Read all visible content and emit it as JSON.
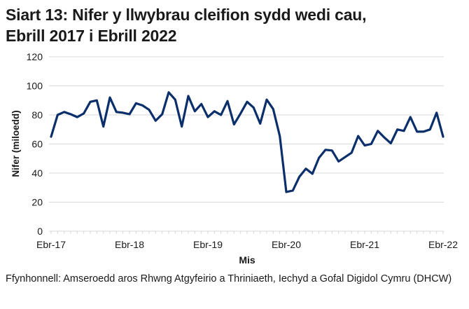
{
  "title": {
    "line1": "Siart 13: Nifer y llwybrau cleifion sydd wedi cau,",
    "line2": "Ebrill 2017 i Ebrill 2022"
  },
  "source": "Ffynhonnell: Amseroedd aros Rhwng Atgyfeirio a Thriniaeth, Iechyd a Gofal Digidol Cymru (DHCW)",
  "colors": {
    "line": "#0b2f6b",
    "grid": "#d9d9d9",
    "text": "#1a1a1a"
  },
  "chart_data": {
    "type": "line",
    "title": "Siart 13: Nifer y llwybrau cleifion sydd wedi cau, Ebrill 2017 i Ebrill 2022",
    "xlabel": "Mis",
    "ylabel": "Nifer (miloedd)",
    "ylim": [
      0,
      120
    ],
    "yticks": [
      0,
      20,
      40,
      60,
      80,
      100,
      120
    ],
    "xtick_labels": [
      "Ebr-17",
      "Ebr-18",
      "Ebr-19",
      "Ebr-20",
      "Ebr-21",
      "Ebr-22"
    ],
    "grid": true,
    "legend": null,
    "x": [
      "Ebr-17",
      "Mai-17",
      "Meh-17",
      "Gor-17",
      "Aws-17",
      "Med-17",
      "Hyd-17",
      "Tach-17",
      "Rhag-17",
      "Ion-18",
      "Chwe-18",
      "Maw-18",
      "Ebr-18",
      "Mai-18",
      "Meh-18",
      "Gor-18",
      "Aws-18",
      "Med-18",
      "Hyd-18",
      "Tach-18",
      "Rhag-18",
      "Ion-19",
      "Chwe-19",
      "Maw-19",
      "Ebr-19",
      "Mai-19",
      "Meh-19",
      "Gor-19",
      "Aws-19",
      "Med-19",
      "Hyd-19",
      "Tach-19",
      "Rhag-19",
      "Ion-20",
      "Chwe-20",
      "Maw-20",
      "Ebr-20",
      "Mai-20",
      "Meh-20",
      "Gor-20",
      "Aws-20",
      "Med-20",
      "Hyd-20",
      "Tach-20",
      "Rhag-20",
      "Ion-21",
      "Chwe-21",
      "Maw-21",
      "Ebr-21",
      "Mai-21",
      "Meh-21",
      "Gor-21",
      "Aws-21",
      "Med-21",
      "Hyd-21",
      "Tach-21",
      "Rhag-21",
      "Ion-22",
      "Chwe-22",
      "Maw-22",
      "Ebr-22"
    ],
    "series": [
      {
        "name": "Nifer y llwybrau cleifion sydd wedi cau",
        "values": [
          65,
          80,
          82,
          80.5,
          78.5,
          81,
          89,
          90,
          72,
          92,
          82,
          81.5,
          80.5,
          88,
          86.5,
          83.5,
          76,
          80.5,
          95.5,
          90.5,
          72,
          93,
          82.5,
          87.5,
          78.5,
          82.5,
          80,
          89.5,
          73.5,
          81,
          89,
          85,
          74,
          90.5,
          84,
          65.5,
          27,
          28,
          37.5,
          43,
          39.5,
          50.5,
          56,
          55.5,
          48,
          51,
          54,
          65.5,
          59,
          60,
          69,
          64.5,
          60.5,
          70,
          69,
          78.5,
          68.5,
          68.5,
          70,
          81.5,
          65
        ]
      }
    ]
  }
}
